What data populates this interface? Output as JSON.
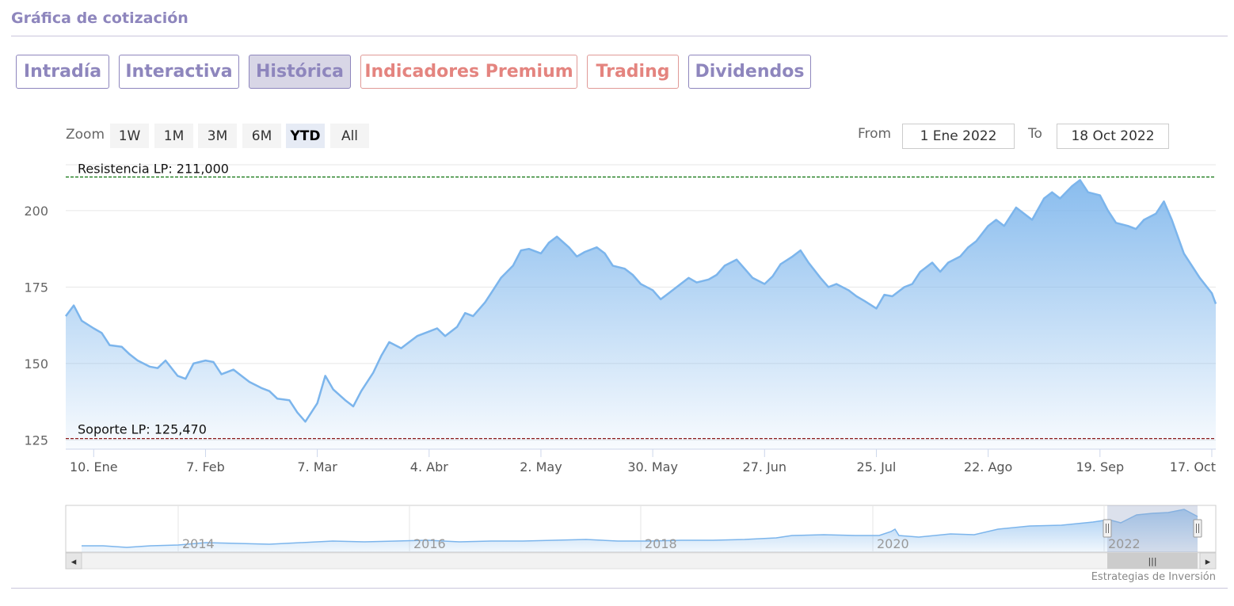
{
  "page_title": "Gráfica de cotización",
  "tabs": [
    {
      "label": "Intradía",
      "premium": false,
      "active": false
    },
    {
      "label": "Interactiva",
      "premium": false,
      "active": false
    },
    {
      "label": "Histórica",
      "premium": false,
      "active": true
    },
    {
      "label": "Indicadores Premium",
      "premium": true,
      "active": false
    },
    {
      "label": "Trading",
      "premium": true,
      "active": false
    },
    {
      "label": "Dividendos",
      "premium": false,
      "active": false
    }
  ],
  "zoom": {
    "label": "Zoom",
    "buttons": [
      {
        "label": "1W",
        "active": false
      },
      {
        "label": "1M",
        "active": false
      },
      {
        "label": "3M",
        "active": false
      },
      {
        "label": "6M",
        "active": false
      },
      {
        "label": "YTD",
        "active": true
      },
      {
        "label": "All",
        "active": false
      }
    ]
  },
  "range": {
    "from_label": "From",
    "from_value": "1 Ene 2022",
    "to_label": "To",
    "to_value": "18 Oct 2022"
  },
  "colors": {
    "accent": "#8e86bd",
    "premium": "#e4847f",
    "series_line": "#7cb5ec",
    "resistance_line": "#1a7a1a",
    "support_line": "#8b1a1a"
  },
  "chart_data": {
    "type": "area",
    "x_start": "2022-01-03",
    "x_end": "2022-10-18",
    "y_ticks": [
      125,
      150,
      175,
      200
    ],
    "ylim": [
      122,
      215
    ],
    "x_ticks": [
      {
        "label": "10. Ene",
        "date": "2022-01-10"
      },
      {
        "label": "7. Feb",
        "date": "2022-02-07"
      },
      {
        "label": "7. Mar",
        "date": "2022-03-07"
      },
      {
        "label": "4. Abr",
        "date": "2022-04-04"
      },
      {
        "label": "2. May",
        "date": "2022-05-02"
      },
      {
        "label": "30. May",
        "date": "2022-05-30"
      },
      {
        "label": "27. Jun",
        "date": "2022-06-27"
      },
      {
        "label": "25. Jul",
        "date": "2022-07-25"
      },
      {
        "label": "22. Ago",
        "date": "2022-08-22"
      },
      {
        "label": "19. Sep",
        "date": "2022-09-19"
      },
      {
        "label": "17. Oct",
        "date": "2022-10-17"
      }
    ],
    "resistance": {
      "label": "Resistencia LP: 211,000",
      "value": 211.0
    },
    "support": {
      "label": "Soporte LP: 125,470",
      "value": 125.47
    },
    "series": [
      {
        "points": [
          [
            "2022-01-03",
            165.5
          ],
          [
            "2022-01-05",
            169
          ],
          [
            "2022-01-07",
            164
          ],
          [
            "2022-01-10",
            161.5
          ],
          [
            "2022-01-12",
            160
          ],
          [
            "2022-01-14",
            156
          ],
          [
            "2022-01-17",
            155.5
          ],
          [
            "2022-01-19",
            153
          ],
          [
            "2022-01-21",
            151
          ],
          [
            "2022-01-24",
            149
          ],
          [
            "2022-01-26",
            148.5
          ],
          [
            "2022-01-28",
            151
          ],
          [
            "2022-01-31",
            146
          ],
          [
            "2022-02-02",
            145
          ],
          [
            "2022-02-04",
            150
          ],
          [
            "2022-02-07",
            151
          ],
          [
            "2022-02-09",
            150.5
          ],
          [
            "2022-02-11",
            146.5
          ],
          [
            "2022-02-14",
            148
          ],
          [
            "2022-02-16",
            146
          ],
          [
            "2022-02-18",
            144
          ],
          [
            "2022-02-21",
            142
          ],
          [
            "2022-02-23",
            141
          ],
          [
            "2022-02-25",
            138.5
          ],
          [
            "2022-02-28",
            138
          ],
          [
            "2022-03-02",
            134
          ],
          [
            "2022-03-04",
            131
          ],
          [
            "2022-03-07",
            137
          ],
          [
            "2022-03-09",
            146
          ],
          [
            "2022-03-11",
            141.5
          ],
          [
            "2022-03-14",
            138
          ],
          [
            "2022-03-16",
            136
          ],
          [
            "2022-03-18",
            141
          ],
          [
            "2022-03-21",
            147
          ],
          [
            "2022-03-23",
            152.5
          ],
          [
            "2022-03-25",
            157
          ],
          [
            "2022-03-28",
            155
          ],
          [
            "2022-03-30",
            157
          ],
          [
            "2022-04-01",
            159
          ],
          [
            "2022-04-04",
            160.5
          ],
          [
            "2022-04-06",
            161.5
          ],
          [
            "2022-04-08",
            159
          ],
          [
            "2022-04-11",
            162
          ],
          [
            "2022-04-13",
            166.5
          ],
          [
            "2022-04-15",
            165.5
          ],
          [
            "2022-04-18",
            170
          ],
          [
            "2022-04-20",
            174
          ],
          [
            "2022-04-22",
            178
          ],
          [
            "2022-04-25",
            182
          ],
          [
            "2022-04-27",
            187
          ],
          [
            "2022-04-29",
            187.5
          ],
          [
            "2022-05-02",
            186
          ],
          [
            "2022-05-04",
            189.5
          ],
          [
            "2022-05-06",
            191.5
          ],
          [
            "2022-05-09",
            188
          ],
          [
            "2022-05-11",
            185
          ],
          [
            "2022-05-13",
            186.5
          ],
          [
            "2022-05-16",
            188
          ],
          [
            "2022-05-18",
            186
          ],
          [
            "2022-05-20",
            182
          ],
          [
            "2022-05-23",
            181
          ],
          [
            "2022-05-25",
            179
          ],
          [
            "2022-05-27",
            176
          ],
          [
            "2022-05-30",
            174
          ],
          [
            "2022-06-01",
            171
          ],
          [
            "2022-06-03",
            173
          ],
          [
            "2022-06-06",
            176
          ],
          [
            "2022-06-08",
            178
          ],
          [
            "2022-06-10",
            176.5
          ],
          [
            "2022-06-13",
            177.5
          ],
          [
            "2022-06-15",
            179
          ],
          [
            "2022-06-17",
            182
          ],
          [
            "2022-06-20",
            184
          ],
          [
            "2022-06-22",
            181
          ],
          [
            "2022-06-24",
            178
          ],
          [
            "2022-06-27",
            176
          ],
          [
            "2022-06-29",
            178.5
          ],
          [
            "2022-07-01",
            182.5
          ],
          [
            "2022-07-04",
            185
          ],
          [
            "2022-07-06",
            187
          ],
          [
            "2022-07-08",
            183
          ],
          [
            "2022-07-11",
            178
          ],
          [
            "2022-07-13",
            175
          ],
          [
            "2022-07-15",
            176
          ],
          [
            "2022-07-18",
            174
          ],
          [
            "2022-07-20",
            172
          ],
          [
            "2022-07-22",
            170.5
          ],
          [
            "2022-07-25",
            168
          ],
          [
            "2022-07-27",
            172.5
          ],
          [
            "2022-07-29",
            172
          ],
          [
            "2022-08-01",
            175
          ],
          [
            "2022-08-03",
            176
          ],
          [
            "2022-08-05",
            180
          ],
          [
            "2022-08-08",
            183
          ],
          [
            "2022-08-10",
            180
          ],
          [
            "2022-08-12",
            183
          ],
          [
            "2022-08-15",
            185
          ],
          [
            "2022-08-17",
            188
          ],
          [
            "2022-08-19",
            190
          ],
          [
            "2022-08-22",
            195
          ],
          [
            "2022-08-24",
            197
          ],
          [
            "2022-08-26",
            195
          ],
          [
            "2022-08-29",
            201
          ],
          [
            "2022-08-31",
            199
          ],
          [
            "2022-09-02",
            197
          ],
          [
            "2022-09-05",
            204
          ],
          [
            "2022-09-07",
            206
          ],
          [
            "2022-09-09",
            204
          ],
          [
            "2022-09-12",
            208
          ],
          [
            "2022-09-14",
            210
          ],
          [
            "2022-09-16",
            206
          ],
          [
            "2022-09-19",
            205
          ],
          [
            "2022-09-21",
            200
          ],
          [
            "2022-09-23",
            196
          ],
          [
            "2022-09-26",
            195
          ],
          [
            "2022-09-28",
            194
          ],
          [
            "2022-09-30",
            197
          ],
          [
            "2022-10-03",
            199
          ],
          [
            "2022-10-05",
            203
          ],
          [
            "2022-10-07",
            197
          ],
          [
            "2022-10-10",
            186
          ],
          [
            "2022-10-12",
            182
          ],
          [
            "2022-10-14",
            178
          ],
          [
            "2022-10-17",
            173
          ],
          [
            "2022-10-18",
            169.5
          ]
        ]
      }
    ]
  },
  "navigator": {
    "year_labels": [
      "2014",
      "2016",
      "2018",
      "2020",
      "2022"
    ],
    "handle_glyph": "|||",
    "scroll_left_glyph": "◂",
    "scroll_right_glyph": "▸"
  },
  "credit": "Estrategias de Inversión"
}
